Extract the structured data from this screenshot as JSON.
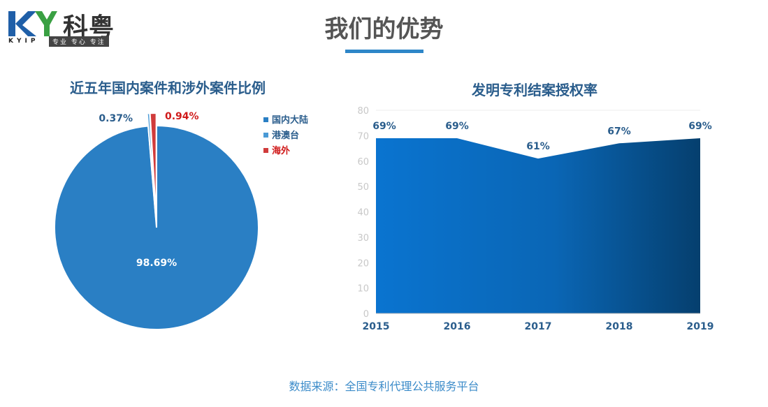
{
  "logo": {
    "brand_cn": "科粤",
    "brand_en": "KYIP",
    "slogan": "专业 专心 专注"
  },
  "page_title": "我们的优势",
  "colors": {
    "accent": "#2e86c8",
    "pie_mainland": "#2a7fc4",
    "pie_hkmt": "#4a9ad6",
    "pie_overseas": "#d03b3b",
    "area_left": "#0a74d0",
    "area_right": "#053f6e"
  },
  "footer": "数据来源：全国专利代理公共服务平台",
  "chart_data": [
    {
      "type": "pie",
      "title": "近五年国内案件和涉外案件比例",
      "slices": [
        {
          "label": "国内大陆",
          "value": 98.69,
          "display": "98.69%"
        },
        {
          "label": "港澳台",
          "value": 0.37,
          "display": "0.37%"
        },
        {
          "label": "海外",
          "value": 0.94,
          "display": "0.94%"
        }
      ],
      "legend_position": "right"
    },
    {
      "type": "area",
      "title": "发明专利结案授权率",
      "x": [
        "2015",
        "2016",
        "2017",
        "2018",
        "2019"
      ],
      "values": [
        69,
        69,
        61,
        67,
        69
      ],
      "labels": [
        "69%",
        "69%",
        "61%",
        "67%",
        "69%"
      ],
      "ylim": [
        0,
        80
      ],
      "yticks": [
        "0",
        "10",
        "20",
        "30",
        "40",
        "50",
        "60",
        "70",
        "80"
      ],
      "grid": false
    }
  ]
}
